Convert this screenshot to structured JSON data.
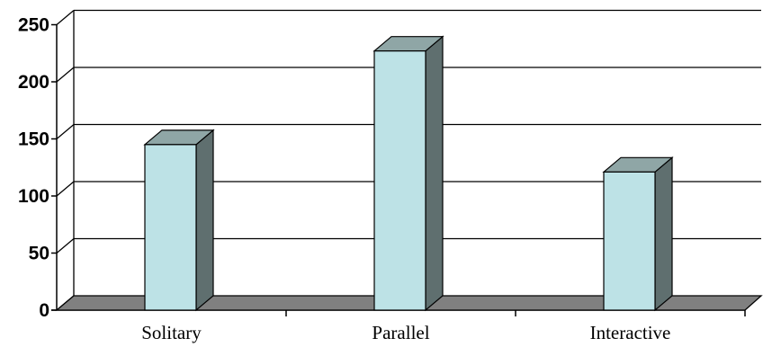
{
  "chart_data": {
    "type": "bar",
    "categories": [
      "Solitary",
      "Parallel",
      "Interactive"
    ],
    "values": [
      145,
      227,
      121
    ],
    "ylim": [
      0,
      250
    ],
    "yticks": [
      0,
      50,
      100,
      150,
      200,
      250
    ],
    "grid": true,
    "style": "3d",
    "colors": {
      "bar_front": "#bde2e6",
      "bar_top": "#8fa6a6",
      "bar_side": "#5f6f6f",
      "floor": "#808080",
      "gridline": "#000000"
    }
  }
}
